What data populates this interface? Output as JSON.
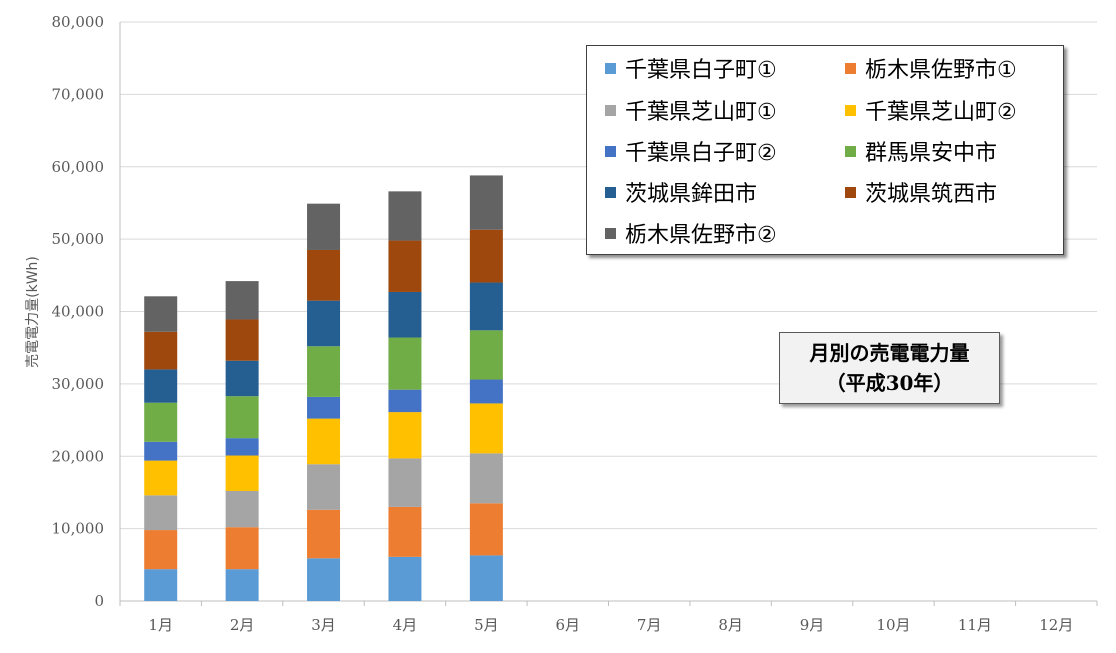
{
  "chart_data": {
    "type": "bar",
    "stacked": true,
    "title": "月別の売電電力量",
    "subtitle": "（平成30年）",
    "xlabel": "",
    "ylabel": "売電電力量(kWh)",
    "ylim": [
      0,
      80000
    ],
    "yticks": [
      "0",
      "10,000",
      "20,000",
      "30,000",
      "40,000",
      "50,000",
      "60,000",
      "70,000",
      "80,000"
    ],
    "grid": true,
    "legend_position": "top-right",
    "categories": [
      "1月",
      "2月",
      "3月",
      "4月",
      "5月",
      "6月",
      "7月",
      "8月",
      "9月",
      "10月",
      "11月",
      "12月"
    ],
    "series": [
      {
        "name": "千葉県白子町①",
        "color": "#5b9bd5",
        "values": [
          4400,
          4400,
          5900,
          6100,
          6300,
          null,
          null,
          null,
          null,
          null,
          null,
          null
        ]
      },
      {
        "name": "栃木県佐野市①",
        "color": "#ed7d31",
        "values": [
          5400,
          5800,
          6700,
          6900,
          7200,
          null,
          null,
          null,
          null,
          null,
          null,
          null
        ]
      },
      {
        "name": "千葉県芝山町①",
        "color": "#a5a5a5",
        "values": [
          4800,
          5000,
          6300,
          6700,
          6900,
          null,
          null,
          null,
          null,
          null,
          null,
          null
        ]
      },
      {
        "name": "千葉県芝山町②",
        "color": "#ffc000",
        "values": [
          4800,
          4900,
          6300,
          6400,
          6900,
          null,
          null,
          null,
          null,
          null,
          null,
          null
        ]
      },
      {
        "name": "千葉県白子町②",
        "color": "#4472c4",
        "values": [
          2600,
          2400,
          3000,
          3100,
          3300,
          null,
          null,
          null,
          null,
          null,
          null,
          null
        ]
      },
      {
        "name": "群馬県安中市",
        "color": "#70ad47",
        "values": [
          5400,
          5800,
          7000,
          7200,
          6800,
          null,
          null,
          null,
          null,
          null,
          null,
          null
        ]
      },
      {
        "name": "茨城県鉾田市",
        "color": "#255e91",
        "values": [
          4600,
          4900,
          6300,
          6300,
          6600,
          null,
          null,
          null,
          null,
          null,
          null,
          null
        ]
      },
      {
        "name": "茨城県筑西市",
        "color": "#9e480e",
        "values": [
          5200,
          5700,
          7000,
          7100,
          7300,
          null,
          null,
          null,
          null,
          null,
          null,
          null
        ]
      },
      {
        "name": "栃木県佐野市②",
        "color": "#636363",
        "values": [
          4900,
          5300,
          6400,
          6800,
          7500,
          null,
          null,
          null,
          null,
          null,
          null,
          null
        ]
      }
    ]
  }
}
